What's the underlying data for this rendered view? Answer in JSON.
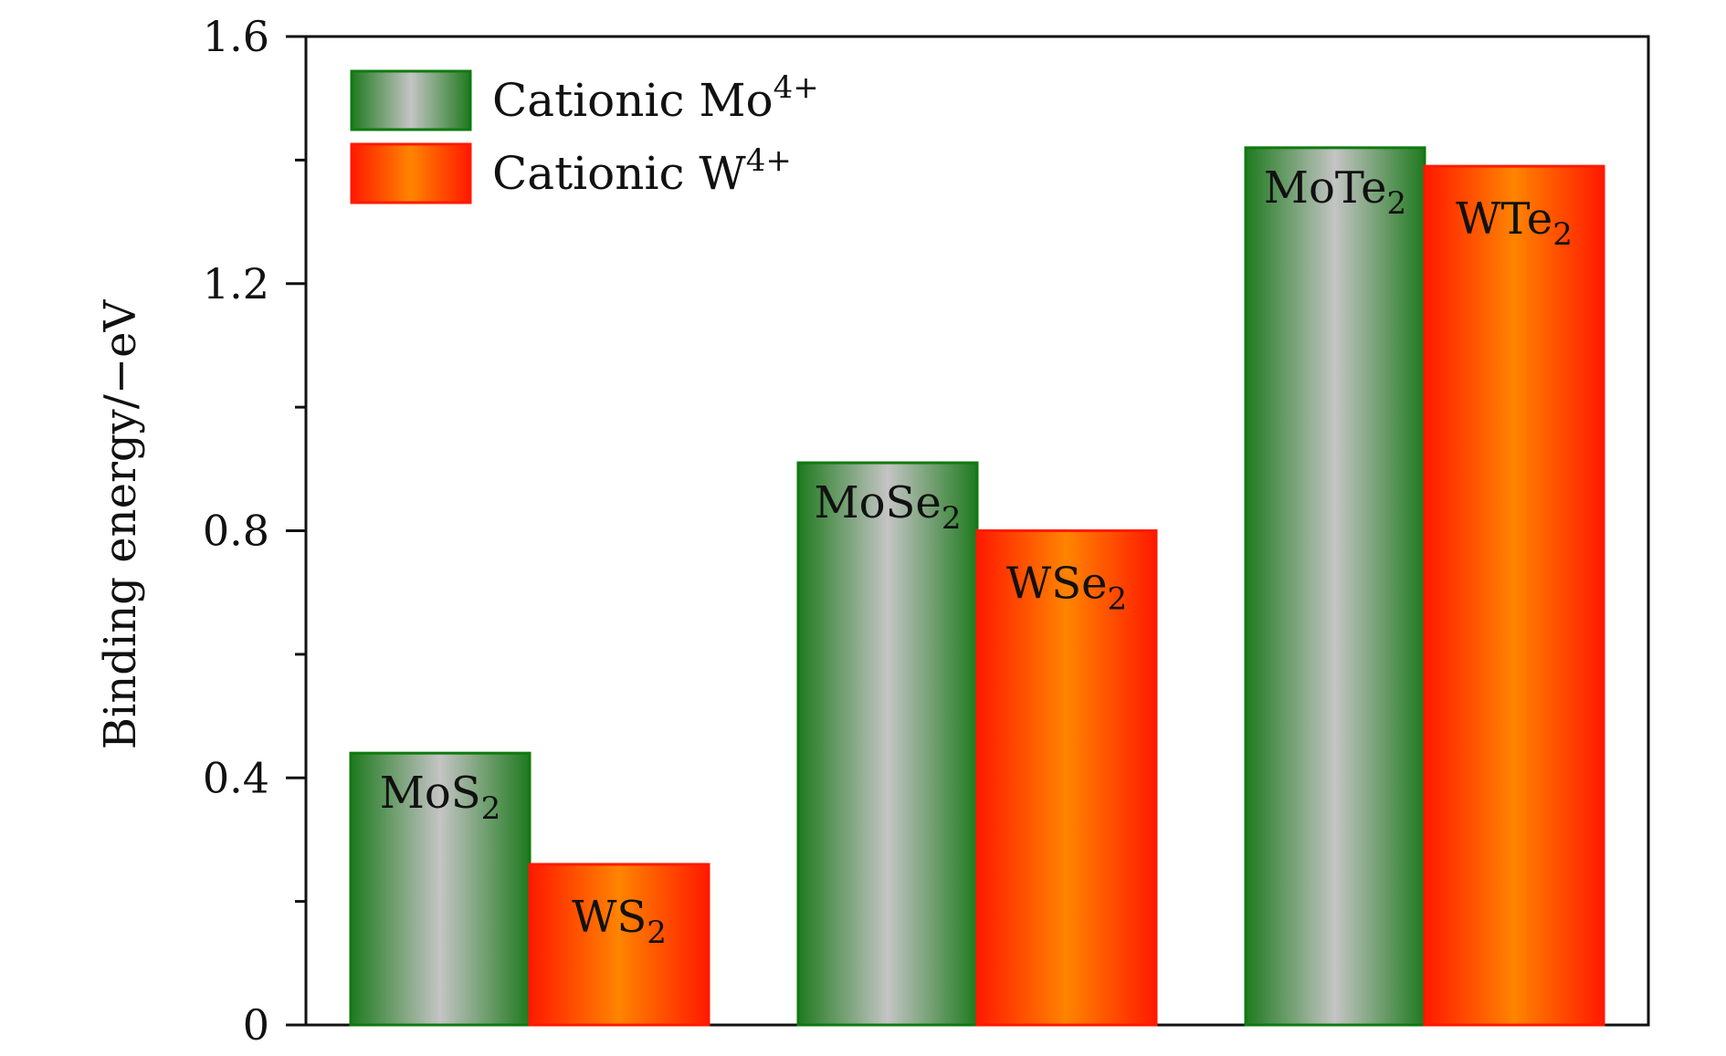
{
  "chart_data": {
    "type": "bar",
    "categories": [
      "MoS2/WS2",
      "MoSe2/WSe2",
      "MoTe2/WTe2"
    ],
    "ylabel": "Binding energy/−eV",
    "ylim": [
      0,
      1.6
    ],
    "yticks": [
      "0",
      "0.4",
      "0.8",
      "1.2",
      "1.6"
    ],
    "grid": false,
    "legend_position": "top-left",
    "series": [
      {
        "name": "Cationic Mo",
        "name_sup": "4+",
        "values": [
          0.44,
          0.91,
          1.42
        ],
        "bar_labels": [
          {
            "base": "MoS",
            "sub": "2"
          },
          {
            "base": "MoSe",
            "sub": "2"
          },
          {
            "base": "MoTe",
            "sub": "2"
          }
        ],
        "colors": {
          "edge": "#1f7a1f",
          "center": "#c4c4c4",
          "border": "#0f7a0f"
        }
      },
      {
        "name": "Cationic W",
        "name_sup": "4+",
        "values": [
          0.26,
          0.8,
          1.39
        ],
        "bar_labels": [
          {
            "base": "WS",
            "sub": "2"
          },
          {
            "base": "WSe",
            "sub": "2"
          },
          {
            "base": "WTe",
            "sub": "2"
          }
        ],
        "colors": {
          "edge": "#ff1a00",
          "center": "#ff8400",
          "border": "#ff1a00"
        }
      }
    ]
  }
}
